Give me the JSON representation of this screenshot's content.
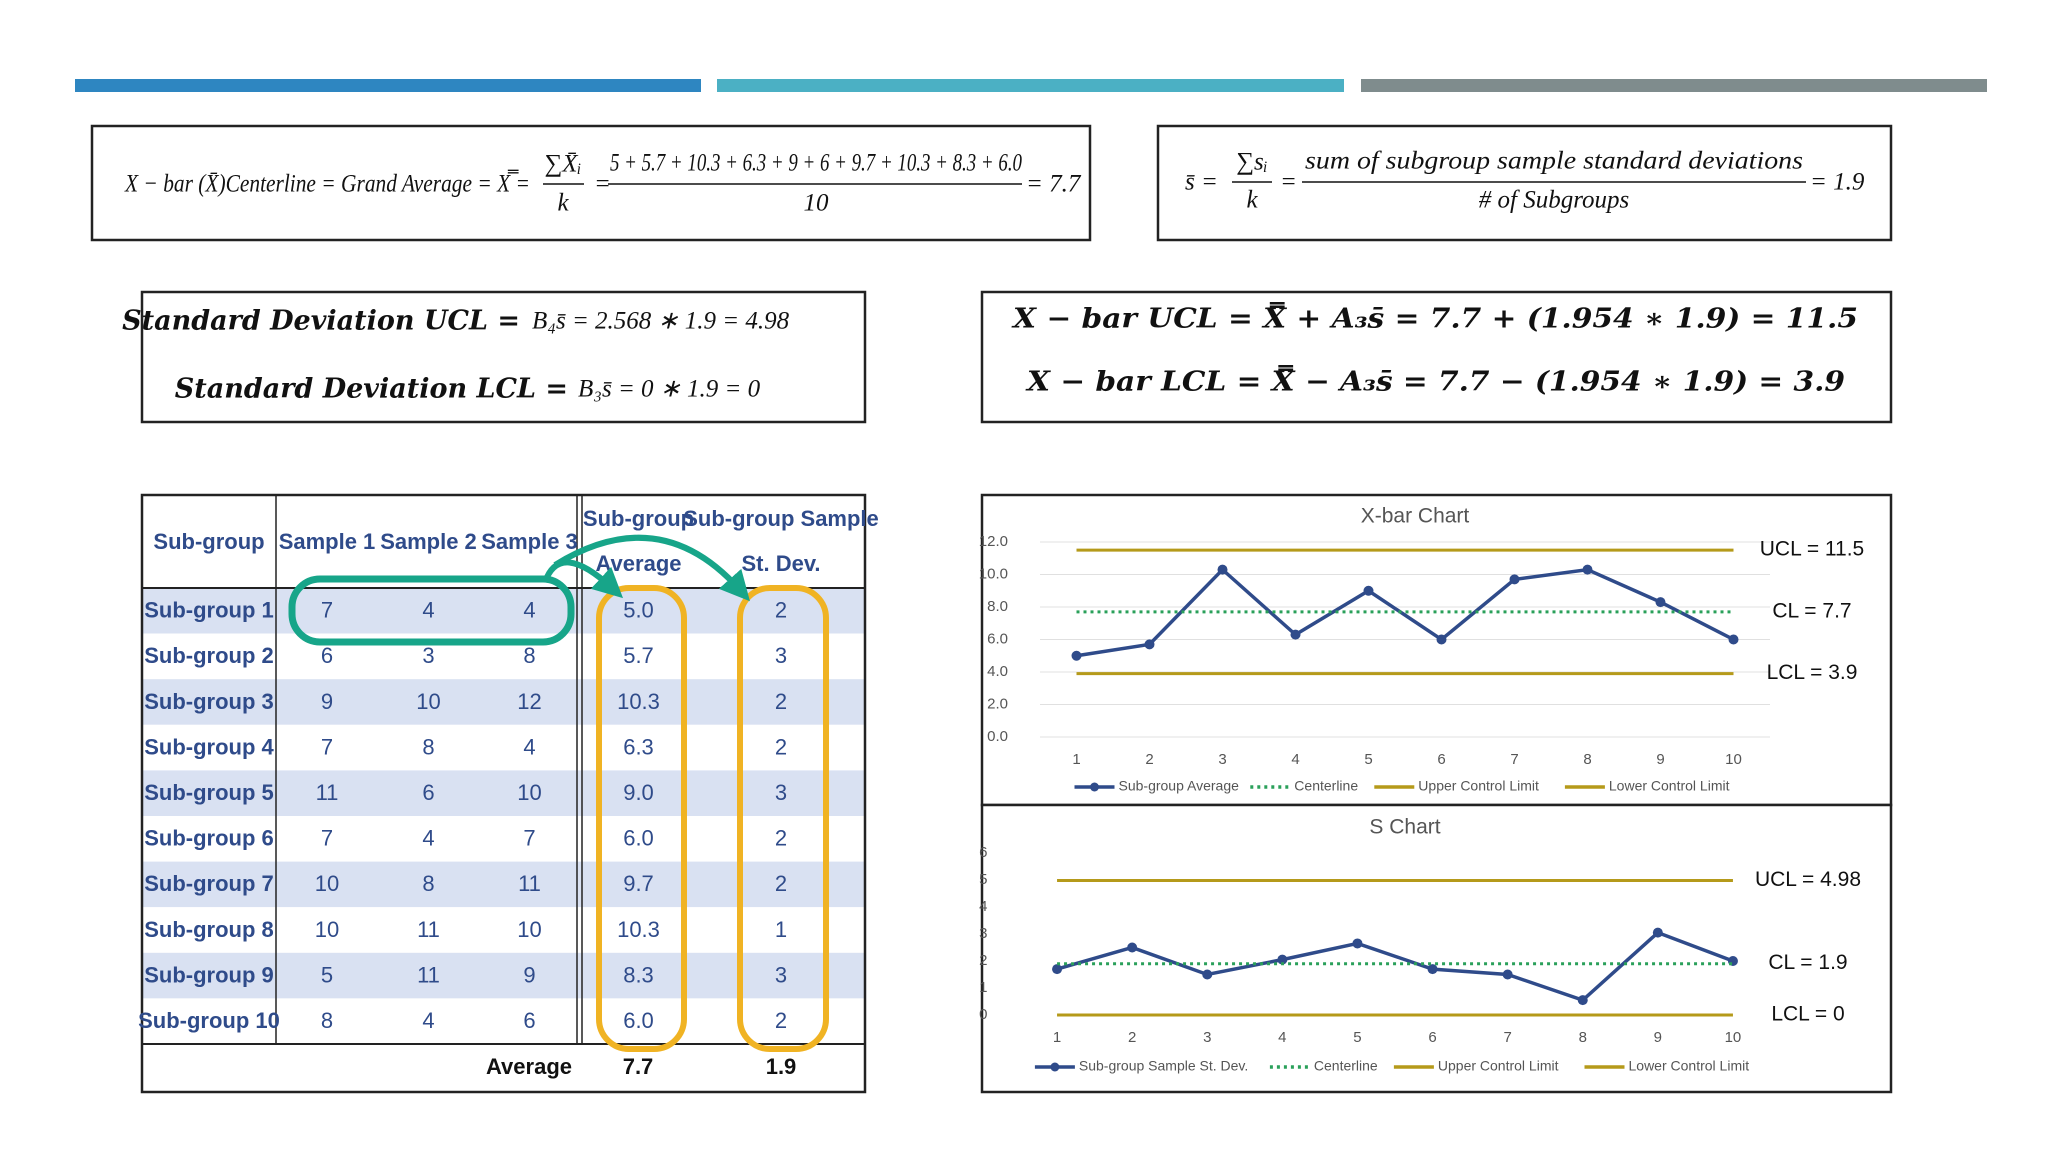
{
  "formulas": {
    "centerline": {
      "lhs": "X − bar (X̄)Centerline = Grand Average = X̿ =",
      "sum_num": "∑X̄ᵢ",
      "sum_den": "k",
      "eq": "=",
      "num": "5 + 5.7 + 10.3 + 6.3 + 9 + 6 + 9.7 + 10.3 + 8.3 + 6.0",
      "den": "10",
      "result": "= 7.7"
    },
    "s_bar": {
      "lhs": "s̄ =",
      "sum_num": "∑sᵢ",
      "sum_den": "k",
      "eq": "=",
      "num": "sum of subgroup sample standard deviations",
      "den": "# of Subgroups",
      "result": "= 1.9"
    },
    "sd_limits": [
      {
        "label": "Standard Deviation UCL =",
        "expr": "B₄s̄ = 2.568 ∗ 1.9 = 4.98"
      },
      {
        "label": "Standard Deviation LCL =",
        "expr": "B₃s̄ = 0 ∗ 1.9 = 0"
      }
    ],
    "xbar_limits": [
      "X − bar UCL = X̿ + A₃s̄ = 7.7 + (1.954 ∗ 1.9) = 11.5",
      "X − bar LCL = X̿ − A₃s̄ = 7.7 − (1.954 ∗ 1.9) = 3.9"
    ]
  },
  "table": {
    "header": [
      "Sub-group",
      "Sample 1",
      "Sample 2",
      "Sample 3",
      "Sub-group Average",
      "Sub-group Sample St. Dev."
    ],
    "rows": [
      [
        "Sub-group 1",
        "7",
        "4",
        "4",
        "5.0",
        "2"
      ],
      [
        "Sub-group 2",
        "6",
        "3",
        "8",
        "5.7",
        "3"
      ],
      [
        "Sub-group 3",
        "9",
        "10",
        "12",
        "10.3",
        "2"
      ],
      [
        "Sub-group 4",
        "7",
        "8",
        "4",
        "6.3",
        "2"
      ],
      [
        "Sub-group 5",
        "11",
        "6",
        "10",
        "9.0",
        "3"
      ],
      [
        "Sub-group 6",
        "7",
        "4",
        "7",
        "6.0",
        "2"
      ],
      [
        "Sub-group 7",
        "10",
        "8",
        "11",
        "9.7",
        "2"
      ],
      [
        "Sub-group 8",
        "10",
        "11",
        "10",
        "10.3",
        "1"
      ],
      [
        "Sub-group 9",
        "5",
        "11",
        "9",
        "8.3",
        "3"
      ],
      [
        "Sub-group 10",
        "8",
        "4",
        "6",
        "6.0",
        "2"
      ]
    ],
    "footer": [
      "Average",
      "7.7",
      "1.9"
    ]
  },
  "chart_data": [
    {
      "type": "line",
      "title": "X-bar Chart",
      "categories": [
        "1",
        "2",
        "3",
        "4",
        "5",
        "6",
        "7",
        "8",
        "9",
        "10"
      ],
      "series": [
        {
          "name": "Sub-group Average",
          "color": "#2f4b8a",
          "style": "solid",
          "markers": true,
          "values": [
            5.0,
            5.7,
            10.3,
            6.3,
            9.0,
            6.0,
            9.7,
            10.3,
            8.3,
            6.0
          ]
        },
        {
          "name": "Centerline",
          "color": "#2aa05a",
          "style": "dotted",
          "markers": false,
          "values": [
            7.7,
            7.7,
            7.7,
            7.7,
            7.7,
            7.7,
            7.7,
            7.7,
            7.7,
            7.7
          ]
        },
        {
          "name": "Upper Control Limit",
          "color": "#b59a1a",
          "style": "solid",
          "markers": false,
          "values": [
            11.5,
            11.5,
            11.5,
            11.5,
            11.5,
            11.5,
            11.5,
            11.5,
            11.5,
            11.5
          ]
        },
        {
          "name": "Lower Control Limit",
          "color": "#b59a1a",
          "style": "solid",
          "markers": false,
          "values": [
            3.9,
            3.9,
            3.9,
            3.9,
            3.9,
            3.9,
            3.9,
            3.9,
            3.9,
            3.9
          ]
        }
      ],
      "annotations": [
        "CL = 7.7",
        "UCL = 11.5",
        "LCL = 3.9"
      ],
      "ylim": [
        0,
        12
      ],
      "yticks": [
        {
          "value": 0,
          "label": "0.0"
        },
        {
          "value": 2,
          "label": "2.0"
        },
        {
          "value": 4,
          "label": "4.0"
        },
        {
          "value": 6,
          "label": "6.0"
        },
        {
          "value": 8,
          "label": "8.0"
        },
        {
          "value": 10,
          "label": "10.0"
        },
        {
          "value": 12,
          "label": "12.0"
        }
      ],
      "grid": true,
      "legend": "bottom"
    },
    {
      "type": "line",
      "title": "S Chart",
      "categories": [
        "1",
        "2",
        "3",
        "4",
        "5",
        "6",
        "7",
        "8",
        "9",
        "10"
      ],
      "series": [
        {
          "name": "Sub-group Sample St. Dev.",
          "color": "#2f4b8a",
          "style": "solid",
          "markers": true,
          "values": [
            1.7,
            2.5,
            1.5,
            2.05,
            2.65,
            1.7,
            1.5,
            0.55,
            3.05,
            2.0
          ]
        },
        {
          "name": "Centerline",
          "color": "#2aa05a",
          "style": "dotted",
          "markers": false,
          "values": [
            1.9,
            1.9,
            1.9,
            1.9,
            1.9,
            1.9,
            1.9,
            1.9,
            1.9,
            1.9
          ]
        },
        {
          "name": "Upper Control Limit",
          "color": "#b59a1a",
          "style": "solid",
          "markers": false,
          "values": [
            4.98,
            4.98,
            4.98,
            4.98,
            4.98,
            4.98,
            4.98,
            4.98,
            4.98,
            4.98
          ]
        },
        {
          "name": "Lower Control Limit",
          "color": "#b59a1a",
          "style": "solid",
          "markers": false,
          "values": [
            0,
            0,
            0,
            0,
            0,
            0,
            0,
            0,
            0,
            0
          ]
        }
      ],
      "annotations": [
        "CL = 1.9",
        "UCL = 4.98",
        "LCL = 0"
      ],
      "ylim": [
        0,
        6
      ],
      "yticks": [
        0,
        1,
        2,
        3,
        4,
        5,
        6
      ],
      "grid": false,
      "legend": "bottom"
    }
  ]
}
